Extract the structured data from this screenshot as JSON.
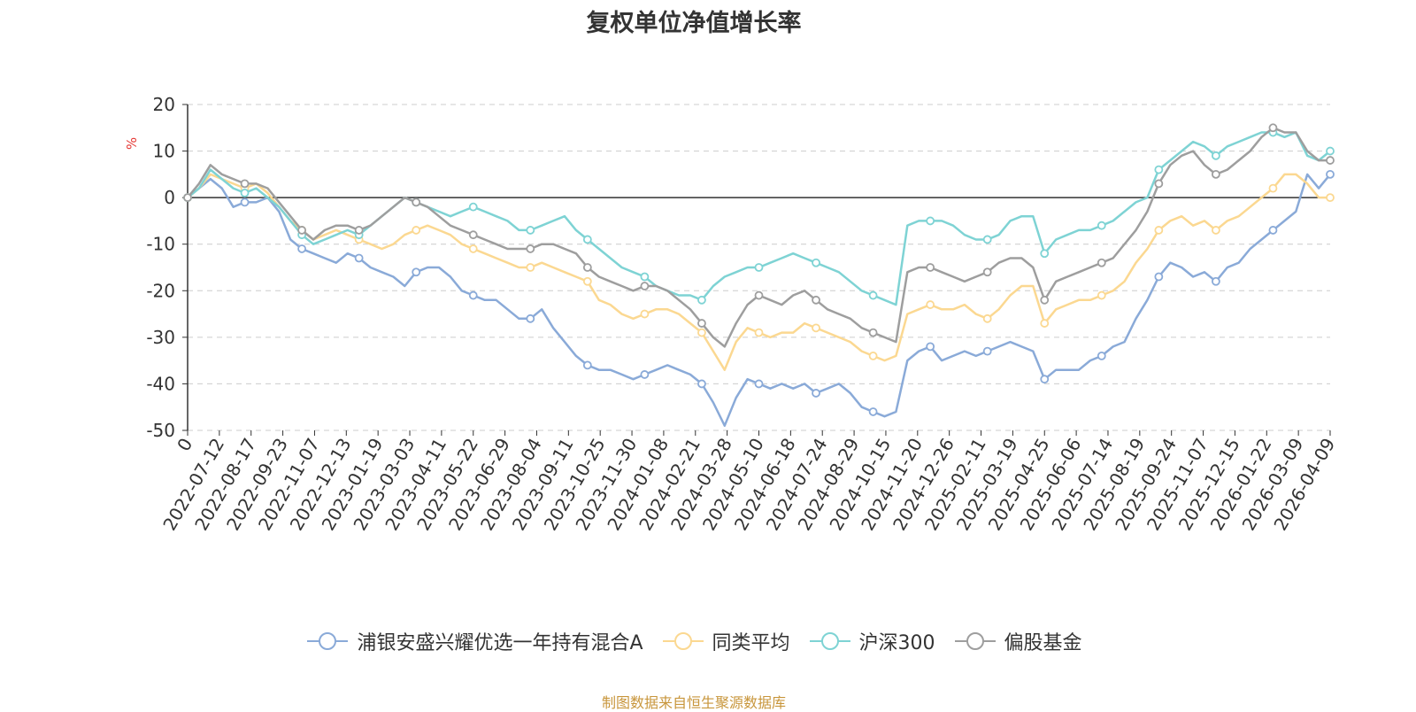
{
  "chart_data": {
    "type": "line",
    "title": "复权单位净值增长率",
    "ylabel": "%",
    "ylim": [
      -50,
      20
    ],
    "yticks": [
      20,
      10,
      0,
      -10,
      -20,
      -30,
      -40,
      -50
    ],
    "xticks": [
      "0",
      "2022-07-12",
      "2022-08-17",
      "2022-09-23",
      "2022-11-07",
      "2022-12-13",
      "2023-01-19",
      "2023-03-03",
      "2023-04-11",
      "2023-05-22",
      "2023-06-29",
      "2023-08-04",
      "2023-09-11",
      "2023-10-25",
      "2023-11-30",
      "2024-01-08",
      "2024-02-21",
      "2024-03-28",
      "2024-05-10",
      "2024-06-18",
      "2024-07-24",
      "2024-08-29",
      "2024-10-15",
      "2024-11-20",
      "2024-12-26",
      "2025-02-11",
      "2025-03-19",
      "2025-04-25",
      "2025-06-06",
      "2025-07-14",
      "2025-08-19",
      "2025-09-24",
      "2025-11-07",
      "2025-12-15",
      "2026-01-22",
      "2026-03-09",
      "2026-04-09"
    ],
    "series": [
      {
        "name": "浦银安盛兴耀优选一年持有混合A",
        "color": "#8aaad8",
        "values": [
          0,
          2,
          4,
          2,
          -2,
          -1,
          -1,
          0,
          -3,
          -9,
          -11,
          -12,
          -13,
          -14,
          -12,
          -13,
          -15,
          -16,
          -17,
          -19,
          -16,
          -15,
          -15,
          -17,
          -20,
          -21,
          -22,
          -22,
          -24,
          -26,
          -26,
          -24,
          -28,
          -31,
          -34,
          -36,
          -37,
          -37,
          -38,
          -39,
          -38,
          -37,
          -36,
          -37,
          -38,
          -40,
          -44,
          -49,
          -43,
          -39,
          -40,
          -41,
          -40,
          -41,
          -40,
          -42,
          -41,
          -40,
          -42,
          -45,
          -46,
          -47,
          -46,
          -35,
          -33,
          -32,
          -35,
          -34,
          -33,
          -34,
          -33,
          -32,
          -31,
          -32,
          -33,
          -39,
          -37,
          -37,
          -37,
          -35,
          -34,
          -32,
          -31,
          -26,
          -22,
          -17,
          -14,
          -15,
          -17,
          -16,
          -18,
          -15,
          -14,
          -11,
          -9,
          -7,
          -5,
          -3,
          5,
          2,
          5
        ]
      },
      {
        "name": "同类平均",
        "color": "#fbd891",
        "values": [
          0,
          2,
          5,
          4,
          3,
          2,
          3,
          1,
          -2,
          -5,
          -7,
          -9,
          -8,
          -7,
          -8,
          -9,
          -10,
          -11,
          -10,
          -8,
          -7,
          -6,
          -7,
          -8,
          -10,
          -11,
          -12,
          -13,
          -14,
          -15,
          -15,
          -14,
          -15,
          -16,
          -17,
          -18,
          -22,
          -23,
          -25,
          -26,
          -25,
          -24,
          -24,
          -25,
          -27,
          -29,
          -33,
          -37,
          -31,
          -28,
          -29,
          -30,
          -29,
          -29,
          -27,
          -28,
          -29,
          -30,
          -31,
          -33,
          -34,
          -35,
          -34,
          -25,
          -24,
          -23,
          -24,
          -24,
          -23,
          -25,
          -26,
          -24,
          -21,
          -19,
          -19,
          -27,
          -24,
          -23,
          -22,
          -22,
          -21,
          -20,
          -18,
          -14,
          -11,
          -7,
          -5,
          -4,
          -6,
          -5,
          -7,
          -5,
          -4,
          -2,
          0,
          2,
          5,
          5,
          3,
          0,
          0
        ]
      },
      {
        "name": "沪深300",
        "color": "#7ed3d4",
        "values": [
          0,
          2,
          6,
          4,
          2,
          1,
          2,
          0,
          -2,
          -5,
          -8,
          -10,
          -9,
          -8,
          -7,
          -8,
          -6,
          -4,
          -2,
          0,
          -1,
          -2,
          -3,
          -4,
          -3,
          -2,
          -3,
          -4,
          -5,
          -7,
          -7,
          -6,
          -5,
          -4,
          -7,
          -9,
          -11,
          -13,
          -15,
          -16,
          -17,
          -19,
          -20,
          -21,
          -21,
          -22,
          -19,
          -17,
          -16,
          -15,
          -15,
          -14,
          -13,
          -12,
          -13,
          -14,
          -15,
          -16,
          -18,
          -20,
          -21,
          -22,
          -23,
          -6,
          -5,
          -5,
          -5,
          -6,
          -8,
          -9,
          -9,
          -8,
          -5,
          -4,
          -4,
          -12,
          -9,
          -8,
          -7,
          -7,
          -6,
          -5,
          -3,
          -1,
          0,
          6,
          8,
          10,
          12,
          11,
          9,
          11,
          12,
          13,
          14,
          14,
          13,
          14,
          9,
          8,
          10
        ]
      },
      {
        "name": "偏股基金",
        "color": "#9e9e9e",
        "values": [
          0,
          3,
          7,
          5,
          4,
          3,
          3,
          2,
          -1,
          -4,
          -7,
          -9,
          -7,
          -6,
          -6,
          -7,
          -6,
          -4,
          -2,
          0,
          -1,
          -2,
          -4,
          -6,
          -7,
          -8,
          -9,
          -10,
          -11,
          -11,
          -11,
          -10,
          -10,
          -11,
          -12,
          -15,
          -17,
          -18,
          -19,
          -20,
          -19,
          -19,
          -20,
          -22,
          -24,
          -27,
          -30,
          -32,
          -27,
          -23,
          -21,
          -22,
          -23,
          -21,
          -20,
          -22,
          -24,
          -25,
          -26,
          -28,
          -29,
          -30,
          -31,
          -16,
          -15,
          -15,
          -16,
          -17,
          -18,
          -17,
          -16,
          -14,
          -13,
          -13,
          -15,
          -22,
          -18,
          -17,
          -16,
          -15,
          -14,
          -13,
          -10,
          -7,
          -3,
          3,
          7,
          9,
          10,
          7,
          5,
          6,
          8,
          10,
          13,
          15,
          14,
          14,
          10,
          8,
          8
        ]
      }
    ]
  },
  "source_text": "制图数据来自恒生聚源数据库",
  "source_color": "#c8963c"
}
